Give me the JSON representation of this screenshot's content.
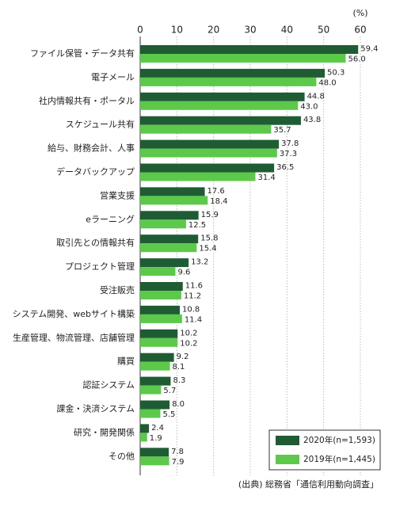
{
  "chart_data": {
    "type": "barh",
    "xlabel": "(%)",
    "source": "(出典) 総務省「通信利用動向調査」",
    "categories": [
      "ファイル保管・データ共有",
      "電子メール",
      "社内情報共有・ポータル",
      "スケジュール共有",
      "給与、財務会計、人事",
      "データバックアップ",
      "営業支援",
      "eラーニング",
      "取引先との情報共有",
      "プロジェクト管理",
      "受注販売",
      "システム開発、webサイト構築",
      "生産管理、物流管理、店舗管理",
      "購買",
      "認証システム",
      "課金・決済システム",
      "研究・開発関係",
      "その他"
    ],
    "series": [
      {
        "name": "2020年(n=1,593)",
        "color": "#1f5c34",
        "values": [
          59.4,
          50.3,
          44.8,
          43.8,
          37.8,
          36.5,
          17.6,
          15.9,
          15.8,
          13.2,
          11.6,
          10.8,
          10.2,
          9.2,
          8.3,
          8.0,
          2.4,
          7.8
        ],
        "value_labels": [
          "59.4",
          "50.3",
          "44.8",
          "43.8",
          "37.8",
          "36.5",
          "17.6",
          "15.9",
          "15.8",
          "13.2",
          "11.6",
          "10.8",
          "10.2",
          "9.2",
          "8.3",
          "8.0",
          "2.4",
          "7.8"
        ]
      },
      {
        "name": "2019年(n=1,445)",
        "color": "#5cc94a",
        "values": [
          56.0,
          48.0,
          43.0,
          35.7,
          37.3,
          31.4,
          18.4,
          12.5,
          15.4,
          9.6,
          11.2,
          11.4,
          10.2,
          8.1,
          5.7,
          5.5,
          1.9,
          7.9
        ],
        "value_labels": [
          "56.0",
          "48.0",
          "43.0",
          "35.7",
          "37.3",
          "31.4",
          "18.4",
          "12.5",
          "15.4",
          "9.6",
          "11.2",
          "11.4",
          "10.2",
          "8.1",
          "5.7",
          "5.5",
          "1.9",
          "7.9"
        ]
      }
    ],
    "xlim": [
      0,
      60
    ],
    "xticks": [
      0,
      10,
      20,
      30,
      40,
      50,
      60
    ],
    "grid": true,
    "legend": "lower right"
  }
}
